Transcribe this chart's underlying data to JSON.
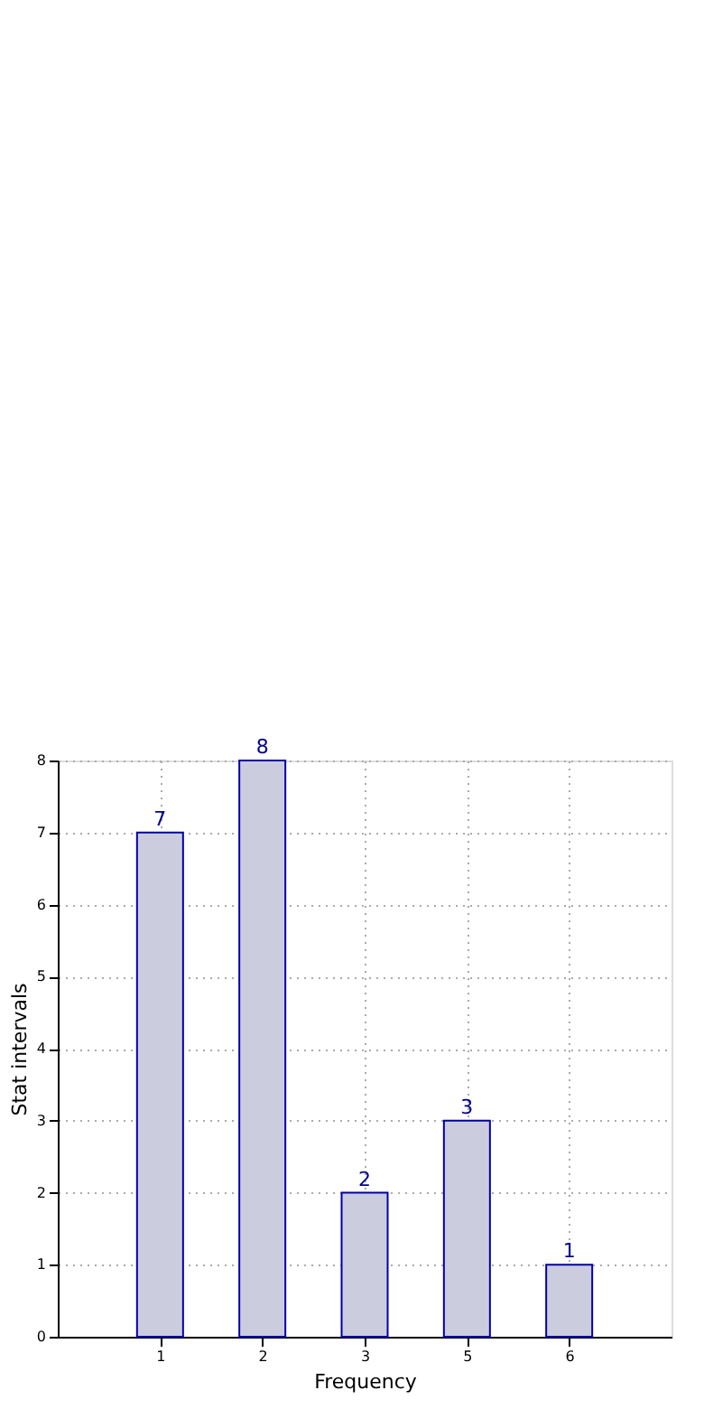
{
  "chart_data": {
    "type": "bar",
    "xlabel": "Frequency",
    "ylabel": "Stat intervals",
    "categories": [
      "1",
      "2",
      "3",
      "5",
      "6"
    ],
    "values": [
      7,
      8,
      2,
      3,
      1
    ],
    "color": "#ccccdf",
    "ylim": [
      0,
      8
    ],
    "yticks": [
      0,
      1,
      2,
      3,
      4,
      5,
      6,
      7,
      8
    ],
    "grid": true,
    "data_labels": true
  }
}
